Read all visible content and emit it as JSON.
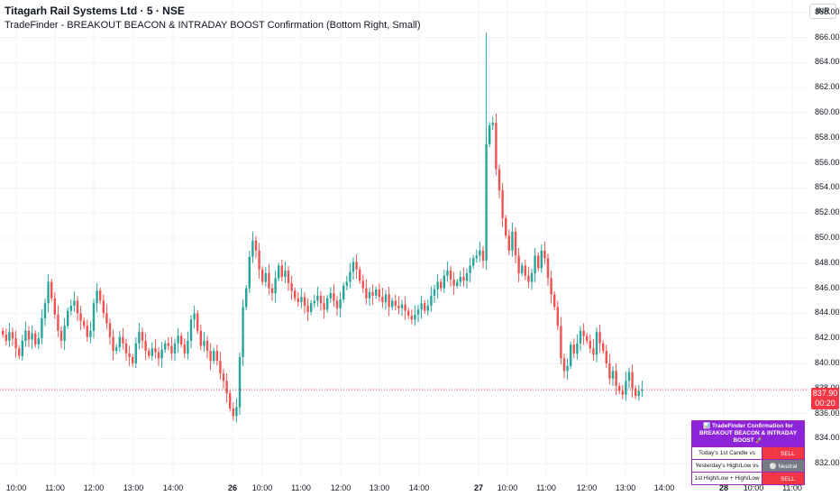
{
  "legend": {
    "symbol": "Titagarh Rail Systems Ltd · 5 · NSE",
    "indicator": "TradeFinder - BREAKOUT BEACON & INTRADAY BOOST Confirmation (Bottom Right, Small)"
  },
  "currency": "INR",
  "last_price": {
    "value": "837.90",
    "countdown": "00:20",
    "color": "#f23645"
  },
  "colors": {
    "up": "#26a69a",
    "down": "#ef5350",
    "grid": "#f0f3fa",
    "price_line": "#f23645"
  },
  "confirmation_table": {
    "title_line1": "📊 TradeFinder Confirmation for",
    "title_line2": "BREAKOUT BEACON & INTRADAY BOOST 🚀",
    "rows": [
      {
        "label": "Today's 1st Candle vs",
        "value": "🔻 SELL",
        "color": "#f23645"
      },
      {
        "label": "Yesterday's High/Low vs",
        "value": "⚪ Neutral",
        "color": "#787b86"
      },
      {
        "label": "1st High/Low + High/Low",
        "value": "🔻 SELL",
        "color": "#f23645"
      }
    ]
  },
  "chart_data": {
    "type": "candlestick",
    "ylim": [
      831,
      869
    ],
    "y_ticks": [
      832,
      834,
      836,
      838,
      840,
      842,
      844,
      846,
      848,
      850,
      852,
      854,
      856,
      858,
      860,
      862,
      864,
      866,
      868
    ],
    "x_ticks": [
      "10:00",
      "11:00",
      "12:00",
      "13:00",
      "14:00",
      "26",
      "10:00",
      "11:00",
      "12:00",
      "13:00",
      "14:00",
      "27",
      "10:00",
      "11:00",
      "12:00",
      "13:00",
      "14:00",
      "28",
      "10:00",
      "11:00"
    ],
    "day_ticks": [
      "26",
      "27",
      "28"
    ],
    "approx_closes": [
      842.3,
      841.8,
      842.5,
      842.0,
      841.2,
      840.6,
      841.8,
      842.6,
      841.9,
      842.4,
      841.5,
      842.0,
      843.6,
      844.8,
      846.5,
      845.2,
      843.9,
      842.6,
      841.8,
      843.0,
      844.2,
      844.6,
      845.0,
      844.0,
      843.4,
      843.0,
      842.1,
      842.6,
      844.8,
      845.8,
      845.0,
      844.0,
      843.2,
      842.1,
      841.0,
      841.3,
      842.1,
      841.6,
      840.8,
      840.5,
      840.0,
      841.6,
      842.5,
      841.8,
      841.0,
      840.6,
      841.2,
      840.9,
      840.4,
      841.1,
      841.6,
      841.4,
      840.8,
      841.6,
      842.2,
      841.5,
      840.8,
      841.8,
      843.5,
      844.0,
      842.6,
      841.4,
      841.8,
      841.0,
      840.2,
      841.0,
      840.2,
      839.2,
      838.6,
      837.6,
      836.4,
      835.8,
      836.5,
      840.5,
      844.5,
      846.0,
      848.5,
      849.8,
      849.0,
      847.5,
      846.5,
      847.2,
      846.0,
      845.6,
      846.8,
      847.8,
      846.9,
      847.4,
      846.4,
      845.8,
      845.2,
      844.9,
      845.3,
      844.6,
      844.1,
      844.8,
      845.0,
      845.4,
      844.8,
      844.3,
      845.2,
      845.6,
      845.0,
      844.4,
      845.1,
      846.2,
      846.5,
      847.3,
      848.1,
      847.5,
      846.6,
      846.0,
      845.2,
      845.7,
      845.4,
      845.9,
      845.3,
      844.9,
      845.5,
      844.5,
      845.0,
      844.6,
      844.4,
      844.7,
      844.2,
      843.8,
      843.5,
      843.9,
      844.3,
      844.8,
      844.2,
      844.6,
      845.4,
      845.9,
      846.5,
      846.0,
      847.0,
      847.4,
      846.7,
      846.2,
      846.5,
      846.9,
      846.6,
      847.2,
      847.8,
      848.4,
      848.6,
      849.0,
      848.2,
      857.5,
      859.0,
      859.2,
      855.5,
      853.8,
      851.6,
      850.2,
      849.0,
      850.5,
      848.6,
      847.2,
      847.8,
      847.0,
      846.5,
      847.2,
      848.6,
      847.6,
      849.0,
      848.4,
      846.8,
      845.5,
      844.5,
      843.0,
      840.4,
      839.4,
      839.8,
      841.5,
      840.8,
      841.6,
      842.6,
      842.2,
      841.8,
      841.2,
      840.7,
      842.5,
      841.6,
      841.0,
      840.0,
      838.8,
      839.4,
      838.2,
      837.8,
      837.5,
      838.6,
      839.3,
      838.0,
      837.4,
      837.8,
      837.9
    ]
  }
}
